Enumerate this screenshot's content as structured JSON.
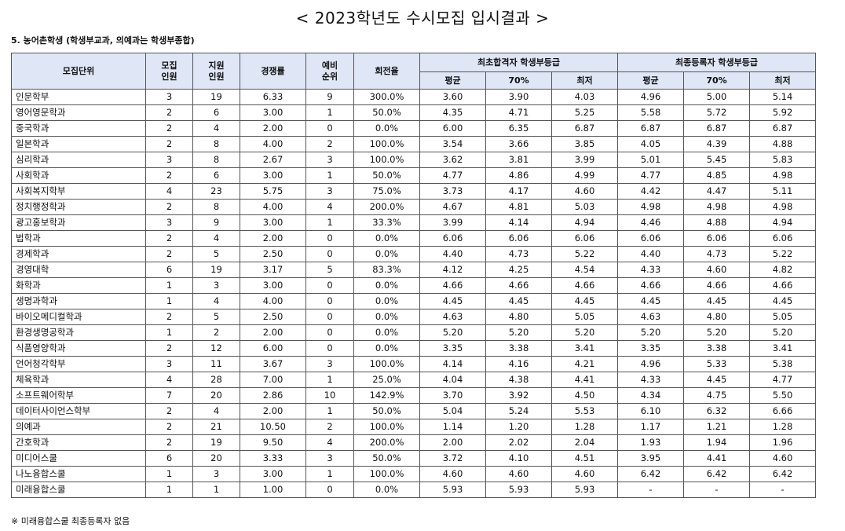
{
  "title": "< 2023학년도 수시모집 입시결과 >",
  "subtitle": "5. 농어촌학생 (학생부교과, 의예과는 학생부종합)",
  "headers": {
    "unit": "모집단위",
    "quota_l1": "모집",
    "quota_l2": "인원",
    "applicants_l1": "지원",
    "applicants_l2": "인원",
    "ratio": "경쟁률",
    "waitlist_l1": "예비",
    "waitlist_l2": "순위",
    "turnover": "회전율",
    "group_initial": "최초합격자 학생부등급",
    "group_final": "최종등록자 학생부등급",
    "avg": "평균",
    "p70": "70%",
    "min": "최저"
  },
  "rows": [
    [
      "인문학부",
      "3",
      "19",
      "6.33",
      "9",
      "300.0%",
      "3.60",
      "3.90",
      "4.03",
      "4.96",
      "5.00",
      "5.14"
    ],
    [
      "영어영문학과",
      "2",
      "6",
      "3.00",
      "1",
      "50.0%",
      "4.35",
      "4.71",
      "5.25",
      "5.58",
      "5.72",
      "5.92"
    ],
    [
      "중국학과",
      "2",
      "4",
      "2.00",
      "0",
      "0.0%",
      "6.00",
      "6.35",
      "6.87",
      "6.87",
      "6.87",
      "6.87"
    ],
    [
      "일본학과",
      "2",
      "8",
      "4.00",
      "2",
      "100.0%",
      "3.54",
      "3.66",
      "3.85",
      "4.05",
      "4.39",
      "4.88"
    ],
    [
      "심리학과",
      "3",
      "8",
      "2.67",
      "3",
      "100.0%",
      "3.62",
      "3.81",
      "3.99",
      "5.01",
      "5.45",
      "5.83"
    ],
    [
      "사회학과",
      "2",
      "6",
      "3.00",
      "1",
      "50.0%",
      "4.77",
      "4.86",
      "4.99",
      "4.77",
      "4.85",
      "4.98"
    ],
    [
      "사회복지학부",
      "4",
      "23",
      "5.75",
      "3",
      "75.0%",
      "3.73",
      "4.17",
      "4.60",
      "4.42",
      "4.47",
      "5.11"
    ],
    [
      "정치행정학과",
      "2",
      "8",
      "4.00",
      "4",
      "200.0%",
      "4.67",
      "4.81",
      "5.03",
      "4.98",
      "4.98",
      "4.98"
    ],
    [
      "광고홍보학과",
      "3",
      "9",
      "3.00",
      "1",
      "33.3%",
      "3.99",
      "4.14",
      "4.94",
      "4.46",
      "4.88",
      "4.94"
    ],
    [
      "법학과",
      "2",
      "4",
      "2.00",
      "0",
      "0.0%",
      "6.06",
      "6.06",
      "6.06",
      "6.06",
      "6.06",
      "6.06"
    ],
    [
      "경제학과",
      "2",
      "5",
      "2.50",
      "0",
      "0.0%",
      "4.40",
      "4.73",
      "5.22",
      "4.40",
      "4.73",
      "5.22"
    ],
    [
      "경영대학",
      "6",
      "19",
      "3.17",
      "5",
      "83.3%",
      "4.12",
      "4.25",
      "4.54",
      "4.33",
      "4.60",
      "4.82"
    ],
    [
      "화학과",
      "1",
      "3",
      "3.00",
      "0",
      "0.0%",
      "4.66",
      "4.66",
      "4.66",
      "4.66",
      "4.66",
      "4.66"
    ],
    [
      "생명과학과",
      "1",
      "4",
      "4.00",
      "0",
      "0.0%",
      "4.45",
      "4.45",
      "4.45",
      "4.45",
      "4.45",
      "4.45"
    ],
    [
      "바이오메디컬학과",
      "2",
      "5",
      "2.50",
      "0",
      "0.0%",
      "4.63",
      "4.80",
      "5.05",
      "4.63",
      "4.80",
      "5.05"
    ],
    [
      "환경생명공학과",
      "1",
      "2",
      "2.00",
      "0",
      "0.0%",
      "5.20",
      "5.20",
      "5.20",
      "5.20",
      "5.20",
      "5.20"
    ],
    [
      "식품영양학과",
      "2",
      "12",
      "6.00",
      "0",
      "0.0%",
      "3.35",
      "3.38",
      "3.41",
      "3.35",
      "3.38",
      "3.41"
    ],
    [
      "언어청각학부",
      "3",
      "11",
      "3.67",
      "3",
      "100.0%",
      "4.14",
      "4.16",
      "4.21",
      "4.96",
      "5.33",
      "5.38"
    ],
    [
      "체육학과",
      "4",
      "28",
      "7.00",
      "1",
      "25.0%",
      "4.04",
      "4.38",
      "4.41",
      "4.33",
      "4.45",
      "4.77"
    ],
    [
      "소프트웨어학부",
      "7",
      "20",
      "2.86",
      "10",
      "142.9%",
      "3.70",
      "3.92",
      "4.50",
      "4.34",
      "4.75",
      "5.50"
    ],
    [
      "데이터사이언스학부",
      "2",
      "4",
      "2.00",
      "1",
      "50.0%",
      "5.04",
      "5.24",
      "5.53",
      "6.10",
      "6.32",
      "6.66"
    ],
    [
      "의예과",
      "2",
      "21",
      "10.50",
      "2",
      "100.0%",
      "1.14",
      "1.20",
      "1.28",
      "1.17",
      "1.21",
      "1.28"
    ],
    [
      "간호학과",
      "2",
      "19",
      "9.50",
      "4",
      "200.0%",
      "2.00",
      "2.02",
      "2.04",
      "1.93",
      "1.94",
      "1.96"
    ],
    [
      "미디어스쿨",
      "6",
      "20",
      "3.33",
      "3",
      "50.0%",
      "3.72",
      "4.10",
      "4.51",
      "3.95",
      "4.41",
      "4.60"
    ],
    [
      "나노융합스쿨",
      "1",
      "3",
      "3.00",
      "1",
      "100.0%",
      "4.60",
      "4.60",
      "4.60",
      "6.42",
      "6.42",
      "6.42"
    ],
    [
      "미래융합스쿨",
      "1",
      "1",
      "1.00",
      "0",
      "0.0%",
      "5.93",
      "5.93",
      "5.93",
      "-",
      "-",
      "-"
    ]
  ],
  "footnote": "※ 미래융합스쿨 최종등록자 없음",
  "colors": {
    "header_bg": "#dfe6f5",
    "border": "#555555"
  }
}
